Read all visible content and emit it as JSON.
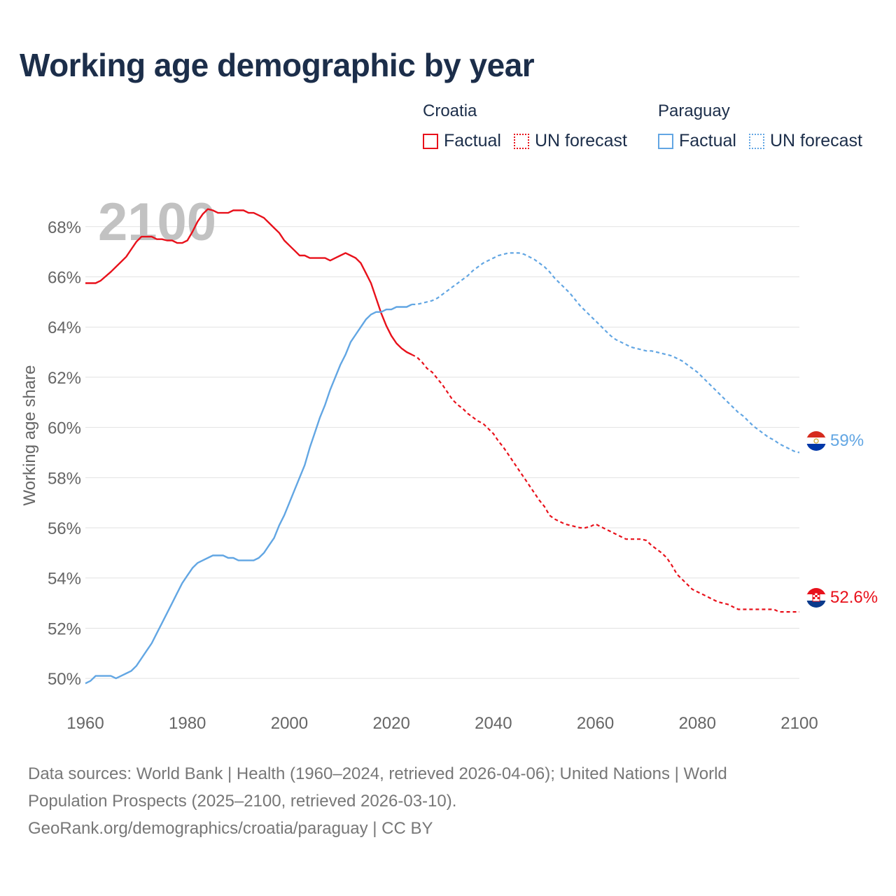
{
  "chart_data": {
    "type": "line",
    "title": "Working age demographic by year",
    "ylabel": "Working age share",
    "xlabel": "",
    "year_watermark": "2100",
    "xlim": [
      1960,
      2100
    ],
    "ylim": [
      49,
      69.5
    ],
    "x_ticks": [
      "1960",
      "1980",
      "2000",
      "2020",
      "2040",
      "2060",
      "2080",
      "2100"
    ],
    "x_tick_values": [
      1960,
      1980,
      2000,
      2020,
      2040,
      2060,
      2080,
      2100
    ],
    "y_ticks": [
      "50%",
      "52%",
      "54%",
      "56%",
      "58%",
      "60%",
      "62%",
      "64%",
      "66%",
      "68%"
    ],
    "y_tick_values": [
      50,
      52,
      54,
      56,
      58,
      60,
      62,
      64,
      66,
      68
    ],
    "legend": {
      "groups": [
        {
          "name": "Croatia",
          "factual_label": "Factual",
          "forecast_label": "UN forecast",
          "color": "#e8111b"
        },
        {
          "name": "Paraguay",
          "factual_label": "Factual",
          "forecast_label": "UN forecast",
          "color": "#62a6e3"
        }
      ]
    },
    "series": [
      {
        "name": "Croatia",
        "color": "#e8111b",
        "end_label": "52.6%",
        "factual": {
          "x": [
            1960,
            1962,
            1963,
            1965,
            1967,
            1968,
            1969,
            1970,
            1971,
            1972,
            1973,
            1974,
            1975,
            1976,
            1977,
            1978,
            1979,
            1980,
            1981,
            1982,
            1983,
            1984,
            1985,
            1986,
            1987,
            1988,
            1989,
            1990,
            1991,
            1992,
            1993,
            1994,
            1995,
            1996,
            1997,
            1998,
            1999,
            2000,
            2001,
            2002,
            2003,
            2004,
            2005,
            2006,
            2007,
            2008,
            2009,
            2010,
            2011,
            2012,
            2013,
            2014,
            2015,
            2016,
            2017,
            2018,
            2019,
            2020,
            2021,
            2022,
            2023,
            2024
          ],
          "y": [
            65.75,
            65.75,
            65.85,
            66.2,
            66.6,
            66.8,
            67.1,
            67.4,
            67.6,
            67.6,
            67.6,
            67.5,
            67.5,
            67.45,
            67.45,
            67.35,
            67.35,
            67.45,
            67.8,
            68.2,
            68.5,
            68.7,
            68.65,
            68.55,
            68.55,
            68.55,
            68.65,
            68.65,
            68.65,
            68.55,
            68.55,
            68.45,
            68.35,
            68.15,
            67.95,
            67.75,
            67.45,
            67.25,
            67.05,
            66.85,
            66.85,
            66.75,
            66.75,
            66.75,
            66.75,
            66.65,
            66.75,
            66.85,
            66.95,
            66.85,
            66.75,
            66.55,
            66.15,
            65.75,
            65.15,
            64.55,
            64.05,
            63.65,
            63.35,
            63.15,
            63.0,
            62.9
          ]
        },
        "forecast": {
          "x": [
            2024,
            2025,
            2026,
            2027,
            2028,
            2029,
            2030,
            2031,
            2032,
            2033,
            2034,
            2035,
            2036,
            2037,
            2038,
            2039,
            2040,
            2041,
            2042,
            2043,
            2044,
            2045,
            2046,
            2047,
            2048,
            2049,
            2050,
            2051,
            2052,
            2053,
            2054,
            2055,
            2056,
            2057,
            2058,
            2059,
            2060,
            2061,
            2062,
            2063,
            2064,
            2065,
            2066,
            2067,
            2068,
            2069,
            2070,
            2071,
            2072,
            2073,
            2074,
            2075,
            2076,
            2077,
            2078,
            2079,
            2080,
            2081,
            2082,
            2083,
            2084,
            2085,
            2086,
            2087,
            2088,
            2090,
            2095,
            2096,
            2100
          ],
          "y": [
            62.9,
            62.8,
            62.6,
            62.35,
            62.2,
            61.95,
            61.7,
            61.4,
            61.1,
            60.9,
            60.75,
            60.55,
            60.4,
            60.25,
            60.15,
            59.95,
            59.75,
            59.45,
            59.2,
            58.9,
            58.6,
            58.3,
            58.0,
            57.7,
            57.4,
            57.1,
            56.85,
            56.5,
            56.35,
            56.25,
            56.15,
            56.1,
            56.05,
            56.0,
            56.0,
            56.05,
            56.15,
            56.05,
            55.95,
            55.85,
            55.75,
            55.65,
            55.55,
            55.55,
            55.55,
            55.55,
            55.5,
            55.3,
            55.15,
            55.0,
            54.8,
            54.5,
            54.15,
            53.95,
            53.75,
            53.55,
            53.45,
            53.35,
            53.25,
            53.15,
            53.05,
            53.0,
            52.95,
            52.85,
            52.75,
            52.75,
            52.75,
            52.65,
            52.65
          ]
        }
      },
      {
        "name": "Paraguay",
        "color": "#62a6e3",
        "end_label": "59%",
        "factual": {
          "x": [
            1960,
            1961,
            1962,
            1963,
            1964,
            1965,
            1966,
            1967,
            1968,
            1969,
            1970,
            1971,
            1972,
            1973,
            1974,
            1975,
            1976,
            1977,
            1978,
            1979,
            1980,
            1981,
            1982,
            1983,
            1984,
            1985,
            1986,
            1987,
            1988,
            1989,
            1990,
            1991,
            1992,
            1993,
            1994,
            1995,
            1996,
            1997,
            1998,
            1999,
            2000,
            2001,
            2002,
            2003,
            2004,
            2005,
            2006,
            2007,
            2008,
            2009,
            2010,
            2011,
            2012,
            2013,
            2014,
            2015,
            2016,
            2017,
            2018,
            2019,
            2020,
            2021,
            2022,
            2023,
            2024
          ],
          "y": [
            49.8,
            49.9,
            50.1,
            50.1,
            50.1,
            50.1,
            50.0,
            50.1,
            50.2,
            50.3,
            50.5,
            50.8,
            51.1,
            51.4,
            51.8,
            52.2,
            52.6,
            53.0,
            53.4,
            53.8,
            54.1,
            54.4,
            54.6,
            54.7,
            54.8,
            54.9,
            54.9,
            54.9,
            54.8,
            54.8,
            54.7,
            54.7,
            54.7,
            54.7,
            54.8,
            55.0,
            55.3,
            55.6,
            56.1,
            56.5,
            57.0,
            57.5,
            58.0,
            58.5,
            59.2,
            59.8,
            60.4,
            60.9,
            61.5,
            62.0,
            62.5,
            62.9,
            63.4,
            63.7,
            64.0,
            64.3,
            64.5,
            64.6,
            64.6,
            64.7,
            64.7,
            64.8,
            64.8,
            64.8,
            64.9
          ]
        },
        "forecast": {
          "x": [
            2024,
            2025,
            2026,
            2027,
            2028,
            2029,
            2030,
            2031,
            2032,
            2033,
            2034,
            2035,
            2036,
            2037,
            2038,
            2039,
            2040,
            2041,
            2042,
            2043,
            2044,
            2045,
            2046,
            2047,
            2048,
            2049,
            2050,
            2051,
            2052,
            2053,
            2054,
            2055,
            2056,
            2057,
            2058,
            2059,
            2060,
            2061,
            2062,
            2063,
            2064,
            2065,
            2066,
            2067,
            2068,
            2069,
            2070,
            2071,
            2072,
            2073,
            2074,
            2075,
            2076,
            2077,
            2078,
            2079,
            2080,
            2081,
            2082,
            2083,
            2084,
            2085,
            2086,
            2087,
            2088,
            2089,
            2090,
            2091,
            2092,
            2093,
            2094,
            2095,
            2096,
            2097,
            2098,
            2099,
            2100
          ],
          "y": [
            64.9,
            64.9,
            64.95,
            65.0,
            65.05,
            65.15,
            65.3,
            65.45,
            65.6,
            65.75,
            65.9,
            66.05,
            66.25,
            66.4,
            66.55,
            66.65,
            66.75,
            66.85,
            66.9,
            66.95,
            66.95,
            66.95,
            66.9,
            66.8,
            66.7,
            66.55,
            66.4,
            66.2,
            65.95,
            65.75,
            65.55,
            65.35,
            65.1,
            64.85,
            64.65,
            64.45,
            64.25,
            64.05,
            63.85,
            63.65,
            63.5,
            63.4,
            63.3,
            63.2,
            63.15,
            63.1,
            63.05,
            63.05,
            63.0,
            62.95,
            62.9,
            62.85,
            62.75,
            62.65,
            62.5,
            62.35,
            62.2,
            62.0,
            61.8,
            61.6,
            61.4,
            61.2,
            61.0,
            60.8,
            60.6,
            60.45,
            60.25,
            60.05,
            59.9,
            59.75,
            59.6,
            59.5,
            59.35,
            59.25,
            59.15,
            59.05,
            59.0
          ]
        }
      }
    ]
  },
  "footer": {
    "line1": "Data sources: World Bank | Health (1960–2024, retrieved 2026-04-06); United Nations | World",
    "line2": "Population Prospects (2025–2100, retrieved 2026-03-10).",
    "line3": "GeoRank.org/demographics/croatia/paraguay | CC BY"
  }
}
